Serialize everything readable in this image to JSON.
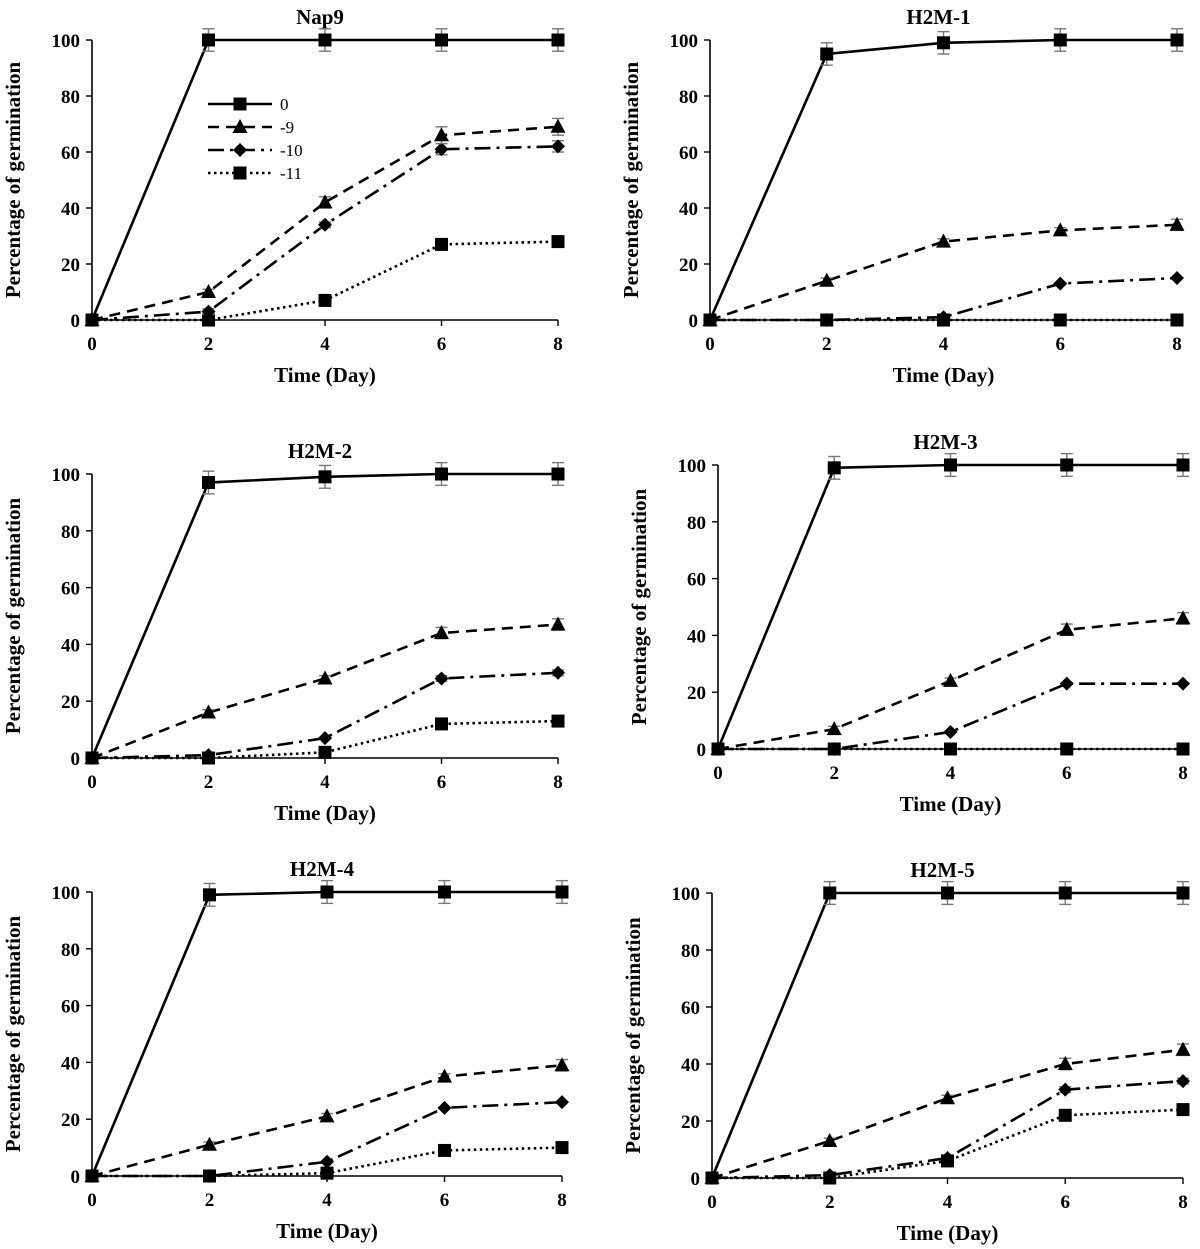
{
  "figure": {
    "legend": {
      "placement": "inside-top-left of first panel",
      "entries": [
        {
          "label": "0",
          "marker": "square",
          "line": "solid"
        },
        {
          "label": "-9",
          "marker": "triangle",
          "line": "dashed"
        },
        {
          "label": "-10",
          "marker": "diamond",
          "line": "dash-dot"
        },
        {
          "label": "-11",
          "marker": "square",
          "line": "dotted"
        }
      ]
    }
  },
  "chart_data": [
    {
      "type": "line",
      "title": "Nap9",
      "xlabel": "Time (Day)",
      "ylabel": "Percentage of germination",
      "x": [
        0,
        2,
        4,
        6,
        8
      ],
      "xlim": [
        0,
        8
      ],
      "ylim": [
        0,
        100
      ],
      "xticks": [
        "0",
        "2",
        "4",
        "6",
        "8"
      ],
      "yticks": [
        "0",
        "20",
        "40",
        "60",
        "80",
        "100"
      ],
      "grid": false,
      "legend": true,
      "series": [
        {
          "name": "0",
          "values": [
            0,
            100,
            100,
            100,
            100
          ],
          "error": [
            0,
            4,
            4,
            4,
            4
          ]
        },
        {
          "name": "-9",
          "values": [
            0,
            10,
            42,
            66,
            69
          ],
          "error": [
            0,
            1,
            2,
            3,
            3
          ]
        },
        {
          "name": "-10",
          "values": [
            0,
            3,
            34,
            61,
            62
          ],
          "error": [
            0,
            1,
            1,
            2,
            2
          ]
        },
        {
          "name": "-11",
          "values": [
            0,
            0,
            7,
            27,
            28
          ],
          "error": [
            0,
            0,
            0,
            0,
            0
          ]
        }
      ]
    },
    {
      "type": "line",
      "title": "H2M-1",
      "xlabel": "Time (Day)",
      "ylabel": "Percentage of germination",
      "x": [
        0,
        2,
        4,
        6,
        8
      ],
      "xlim": [
        0,
        8
      ],
      "ylim": [
        0,
        100
      ],
      "xticks": [
        "0",
        "2",
        "4",
        "6",
        "8"
      ],
      "yticks": [
        "0",
        "20",
        "40",
        "60",
        "80",
        "100"
      ],
      "grid": false,
      "legend": false,
      "series": [
        {
          "name": "0",
          "values": [
            0,
            95,
            99,
            100,
            100
          ],
          "error": [
            0,
            4,
            4,
            4,
            4
          ]
        },
        {
          "name": "-9",
          "values": [
            0,
            14,
            28,
            32,
            34
          ],
          "error": [
            0,
            1,
            1,
            1,
            2
          ]
        },
        {
          "name": "-10",
          "values": [
            0,
            0,
            1,
            13,
            15
          ],
          "error": [
            0,
            0,
            0,
            0,
            0
          ]
        },
        {
          "name": "-11",
          "values": [
            0,
            0,
            0,
            0,
            0
          ],
          "error": [
            0,
            0,
            0,
            0,
            0
          ]
        }
      ]
    },
    {
      "type": "line",
      "title": "H2M-2",
      "xlabel": "Time (Day)",
      "ylabel": "Percentage of germination",
      "x": [
        0,
        2,
        4,
        6,
        8
      ],
      "xlim": [
        0,
        8
      ],
      "ylim": [
        0,
        100
      ],
      "xticks": [
        "0",
        "2",
        "4",
        "6",
        "8"
      ],
      "yticks": [
        "0",
        "20",
        "40",
        "60",
        "80",
        "100"
      ],
      "grid": false,
      "legend": false,
      "series": [
        {
          "name": "0",
          "values": [
            0,
            97,
            99,
            100,
            100
          ],
          "error": [
            0,
            4,
            4,
            4,
            4
          ]
        },
        {
          "name": "-9",
          "values": [
            0,
            16,
            28,
            44,
            47
          ],
          "error": [
            0,
            1,
            1,
            2,
            2
          ]
        },
        {
          "name": "-10",
          "values": [
            0,
            1,
            7,
            28,
            30
          ],
          "error": [
            0,
            0,
            0,
            1,
            1
          ]
        },
        {
          "name": "-11",
          "values": [
            0,
            0,
            2,
            12,
            13
          ],
          "error": [
            0,
            0,
            0,
            0,
            0
          ]
        }
      ]
    },
    {
      "type": "line",
      "title": "H2M-3",
      "xlabel": "Time (Day)",
      "ylabel": "Percentage of germination",
      "x": [
        0,
        2,
        4,
        6,
        8
      ],
      "xlim": [
        0,
        8
      ],
      "ylim": [
        0,
        100
      ],
      "xticks": [
        "0",
        "2",
        "4",
        "6",
        "8"
      ],
      "yticks": [
        "0",
        "20",
        "40",
        "60",
        "80",
        "100"
      ],
      "grid": false,
      "legend": false,
      "series": [
        {
          "name": "0",
          "values": [
            0,
            99,
            100,
            100,
            100
          ],
          "error": [
            0,
            4,
            4,
            4,
            4
          ]
        },
        {
          "name": "-9",
          "values": [
            0,
            7,
            24,
            42,
            46
          ],
          "error": [
            0,
            1,
            1,
            2,
            2
          ]
        },
        {
          "name": "-10",
          "values": [
            0,
            0,
            6,
            23,
            23
          ],
          "error": [
            0,
            0,
            0,
            0,
            0
          ]
        },
        {
          "name": "-11",
          "values": [
            0,
            0,
            0,
            0,
            0
          ],
          "error": [
            0,
            0,
            0,
            0,
            0
          ]
        }
      ]
    },
    {
      "type": "line",
      "title": "H2M-4",
      "xlabel": "Time (Day)",
      "ylabel": "Percentage of germination",
      "x": [
        0,
        2,
        4,
        6,
        8
      ],
      "xlim": [
        0,
        8
      ],
      "ylim": [
        0,
        100
      ],
      "xticks": [
        "0",
        "2",
        "4",
        "6",
        "8"
      ],
      "yticks": [
        "0",
        "20",
        "40",
        "60",
        "80",
        "100"
      ],
      "grid": false,
      "legend": false,
      "series": [
        {
          "name": "0",
          "values": [
            0,
            99,
            100,
            100,
            100
          ],
          "error": [
            0,
            4,
            4,
            4,
            4
          ]
        },
        {
          "name": "-9",
          "values": [
            0,
            11,
            21,
            35,
            39
          ],
          "error": [
            0,
            1,
            1,
            1,
            2
          ]
        },
        {
          "name": "-10",
          "values": [
            0,
            0,
            5,
            24,
            26
          ],
          "error": [
            0,
            0,
            0,
            0,
            0
          ]
        },
        {
          "name": "-11",
          "values": [
            0,
            0,
            1,
            9,
            10
          ],
          "error": [
            0,
            0,
            0,
            0,
            0
          ]
        }
      ]
    },
    {
      "type": "line",
      "title": "H2M-5",
      "xlabel": "Time (Day)",
      "ylabel": "Percentage of germination",
      "x": [
        0,
        2,
        4,
        6,
        8
      ],
      "xlim": [
        0,
        8
      ],
      "ylim": [
        0,
        100
      ],
      "xticks": [
        "0",
        "2",
        "4",
        "6",
        "8"
      ],
      "yticks": [
        "0",
        "20",
        "40",
        "60",
        "80",
        "100"
      ],
      "grid": false,
      "legend": false,
      "series": [
        {
          "name": "0",
          "values": [
            0,
            100,
            100,
            100,
            100
          ],
          "error": [
            0,
            4,
            4,
            4,
            4
          ]
        },
        {
          "name": "-9",
          "values": [
            0,
            13,
            28,
            40,
            45
          ],
          "error": [
            0,
            1,
            1,
            2,
            2
          ]
        },
        {
          "name": "-10",
          "values": [
            0,
            1,
            7,
            31,
            34
          ],
          "error": [
            0,
            0,
            0,
            1,
            1
          ]
        },
        {
          "name": "-11",
          "values": [
            0,
            0,
            6,
            22,
            24
          ],
          "error": [
            0,
            0,
            0,
            0,
            0
          ]
        }
      ]
    }
  ]
}
